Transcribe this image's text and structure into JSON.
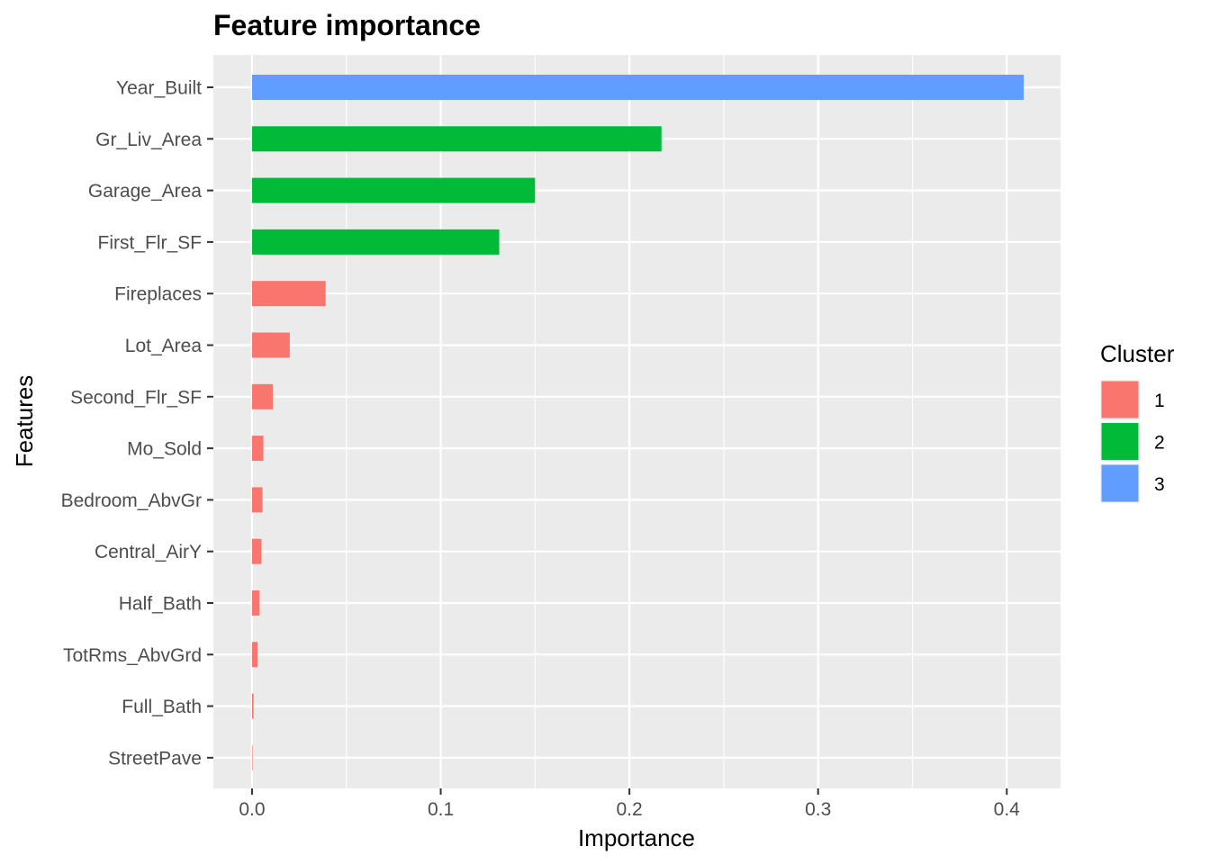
{
  "chart_data": {
    "type": "bar",
    "orientation": "horizontal",
    "title": "Feature importance",
    "xlabel": "Importance",
    "ylabel": "Features",
    "xlim": [
      -0.0205,
      0.4285
    ],
    "xticks": [
      0.0,
      0.1,
      0.2,
      0.3,
      0.4
    ],
    "xtick_labels": [
      "0.0",
      "0.1",
      "0.2",
      "0.3",
      "0.4"
    ],
    "grid": true,
    "legend": {
      "title": "Cluster",
      "placement": "right",
      "entries": [
        {
          "label": "1",
          "color": "#F8766D"
        },
        {
          "label": "2",
          "color": "#00BA38"
        },
        {
          "label": "3",
          "color": "#619CFF"
        }
      ]
    },
    "categories": [
      "Year_Built",
      "Gr_Liv_Area",
      "Garage_Area",
      "First_Flr_SF",
      "Fireplaces",
      "Lot_Area",
      "Second_Flr_SF",
      "Mo_Sold",
      "Bedroom_AbvGr",
      "Central_AirY",
      "Half_Bath",
      "TotRms_AbvGrd",
      "Full_Bath",
      "StreetPave"
    ],
    "values": [
      0.409,
      0.217,
      0.15,
      0.131,
      0.039,
      0.02,
      0.011,
      0.006,
      0.0055,
      0.005,
      0.004,
      0.003,
      0.0008,
      0.0003
    ],
    "clusters": [
      "3",
      "2",
      "2",
      "2",
      "1",
      "1",
      "1",
      "1",
      "1",
      "1",
      "1",
      "1",
      "1",
      "1"
    ]
  }
}
